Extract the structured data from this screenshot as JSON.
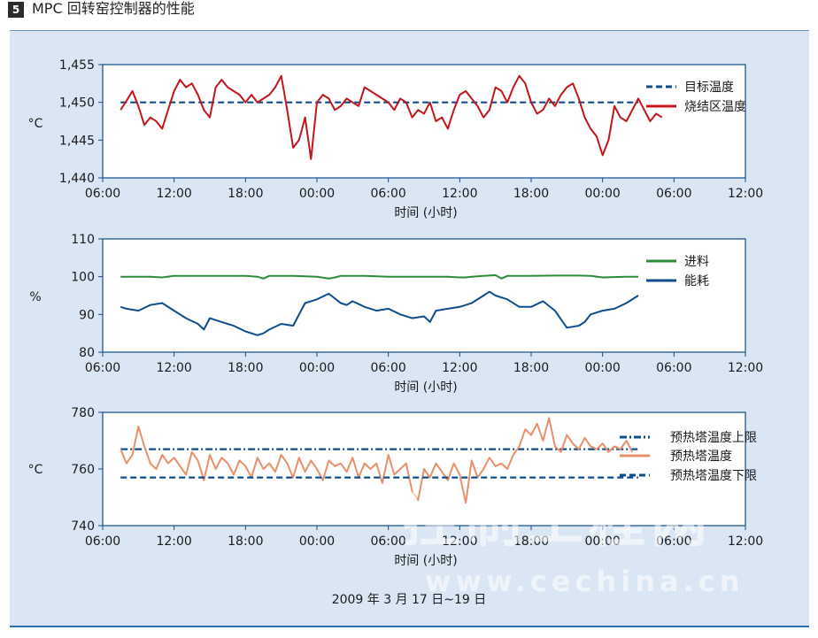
{
  "figure": {
    "number": "5",
    "title": "MPC 回转窑控制器的性能",
    "date_caption": "2009 年 3 月 17 日~19 日",
    "watermark": "控制工程网",
    "watermark_url": "www.cechina.cn"
  },
  "colors": {
    "panel_bg": "#dbe6f4",
    "dark_blue": "#0e4c8c",
    "red": "#c0161c",
    "green": "#2e8b3a",
    "salmon": "#e8906a"
  },
  "chart_data": [
    {
      "type": "line",
      "ylabel": "°C",
      "xlabel": "时间 (小时)",
      "x_ticks": [
        "06:00",
        "12:00",
        "18:00",
        "00:00",
        "06:00",
        "12:00",
        "18:00",
        "00:00",
        "06:00",
        "12:00"
      ],
      "x_unit": "hours",
      "xlim": [
        0,
        54
      ],
      "y_ticks": [
        "1,455",
        "1,450",
        "1,445",
        "1,440"
      ],
      "ylim": [
        1440,
        1455
      ],
      "grid": false,
      "legend_position": "right",
      "series": [
        {
          "name": "目标温度",
          "style": "dashed",
          "color": "#0e4c8c",
          "x": [
            1.5,
            45.0
          ],
          "y": [
            1450,
            1450
          ]
        },
        {
          "name": "烧结区温度",
          "style": "solid",
          "color": "#c0161c",
          "x": [
            1.5,
            2.0,
            2.5,
            3.0,
            3.5,
            4.0,
            4.5,
            5.0,
            5.5,
            6.0,
            6.5,
            7.0,
            7.5,
            8.0,
            8.5,
            9.0,
            9.5,
            10.0,
            10.5,
            11.0,
            11.5,
            12.0,
            12.5,
            13.0,
            13.5,
            14.0,
            14.5,
            15.0,
            15.5,
            16.0,
            16.5,
            17.0,
            17.5,
            18.0,
            18.5,
            19.0,
            19.5,
            20.0,
            20.5,
            21.0,
            21.5,
            22.0,
            22.5,
            23.0,
            23.5,
            24.0,
            24.5,
            25.0,
            25.5,
            26.0,
            26.5,
            27.0,
            27.5,
            28.0,
            28.5,
            29.0,
            29.5,
            30.0,
            30.5,
            31.0,
            31.5,
            32.0,
            32.5,
            33.0,
            33.5,
            34.0,
            34.5,
            35.0,
            35.5,
            36.0,
            36.5,
            37.0,
            37.5,
            38.0,
            38.5,
            39.0,
            39.5,
            40.0,
            40.5,
            41.0,
            41.5,
            42.0,
            42.5,
            43.0,
            43.5,
            44.0,
            44.5,
            45.0,
            45.5,
            46.0,
            46.5,
            47.0
          ],
          "y": [
            1449.0,
            1450.2,
            1451.5,
            1449.5,
            1447.0,
            1448.0,
            1447.5,
            1446.5,
            1449.0,
            1451.5,
            1453.0,
            1452.0,
            1452.5,
            1451.0,
            1449.0,
            1448.0,
            1452.0,
            1453.0,
            1452.0,
            1451.5,
            1451.0,
            1450.0,
            1451.0,
            1450.0,
            1450.5,
            1451.0,
            1452.0,
            1453.5,
            1449.0,
            1444.0,
            1445.0,
            1448.0,
            1442.5,
            1450.0,
            1451.0,
            1450.5,
            1449.0,
            1449.5,
            1450.5,
            1450.0,
            1449.5,
            1452.0,
            1451.5,
            1451.0,
            1450.5,
            1450.0,
            1449.0,
            1450.5,
            1450.0,
            1448.0,
            1449.0,
            1448.5,
            1450.0,
            1447.5,
            1448.0,
            1446.5,
            1449.0,
            1451.0,
            1451.5,
            1450.5,
            1449.5,
            1448.0,
            1449.0,
            1452.0,
            1451.5,
            1450.0,
            1452.0,
            1453.5,
            1452.5,
            1450.0,
            1448.5,
            1449.0,
            1450.5,
            1449.5,
            1451.0,
            1452.0,
            1452.5,
            1450.5,
            1448.0,
            1446.5,
            1445.5,
            1443.0,
            1445.0,
            1449.5,
            1448.0,
            1447.5,
            1449.0,
            1450.5,
            1449.0,
            1447.5,
            1448.5,
            1448.0
          ]
        }
      ]
    },
    {
      "type": "line",
      "ylabel": "%",
      "xlabel": "时间 (小时)",
      "x_ticks": [
        "06:00",
        "12:00",
        "18:00",
        "00:00",
        "06:00",
        "12:00",
        "18:00",
        "00:00",
        "06:00",
        "12:00"
      ],
      "x_unit": "hours",
      "xlim": [
        0,
        54
      ],
      "y_ticks": [
        "110",
        "100",
        "90",
        "80"
      ],
      "ylim": [
        80,
        110
      ],
      "grid": false,
      "legend_position": "right",
      "series": [
        {
          "name": "进料",
          "style": "solid",
          "color": "#2e8b3a",
          "x": [
            1.5,
            4.0,
            5.0,
            6.0,
            8.0,
            10.0,
            12.0,
            13.0,
            13.5,
            14.0,
            16.0,
            18.0,
            19.0,
            19.5,
            20.0,
            22.0,
            24.0,
            27.0,
            29.0,
            30.0,
            30.5,
            31.0,
            32.0,
            33.0,
            33.5,
            34.0,
            36.0,
            38.0,
            40.0,
            41.0,
            42.0,
            44.0,
            45.0
          ],
          "y": [
            100,
            100,
            99.8,
            100.2,
            100.2,
            100.2,
            100.2,
            100.0,
            99.5,
            100.2,
            100.2,
            100.0,
            99.5,
            99.8,
            100.2,
            100.2,
            100.0,
            100.0,
            100.0,
            99.8,
            99.8,
            100.0,
            100.2,
            100.4,
            99.5,
            100.2,
            100.2,
            100.3,
            100.3,
            100.2,
            99.8,
            100.0,
            100.0
          ]
        },
        {
          "name": "能耗",
          "style": "solid",
          "color": "#0e4c8c",
          "x": [
            1.5,
            2.0,
            3.0,
            4.0,
            5.0,
            6.0,
            7.0,
            8.0,
            8.5,
            9.0,
            10.0,
            11.0,
            12.0,
            12.5,
            13.0,
            13.5,
            14.0,
            15.0,
            16.0,
            17.0,
            18.0,
            19.0,
            20.0,
            20.5,
            21.0,
            22.0,
            23.0,
            24.0,
            25.0,
            26.0,
            27.0,
            27.5,
            28.0,
            29.0,
            30.0,
            30.5,
            31.0,
            32.0,
            32.5,
            33.0,
            34.0,
            35.0,
            36.0,
            37.0,
            38.0,
            39.0,
            40.0,
            40.5,
            41.0,
            42.0,
            43.0,
            44.0,
            45.0
          ],
          "y": [
            92,
            91.5,
            91,
            92.5,
            93,
            91,
            89,
            87.5,
            86,
            89,
            88,
            87,
            85.5,
            85,
            84.5,
            85,
            86,
            87.5,
            87,
            93,
            94,
            95.5,
            93,
            92.5,
            93.5,
            92,
            91,
            91.5,
            90,
            89,
            89.5,
            88,
            91,
            91.5,
            92,
            92.5,
            93,
            95,
            96,
            95,
            94,
            92,
            92,
            93.5,
            91,
            86.5,
            87,
            88,
            90,
            91,
            91.5,
            93,
            95
          ]
        }
      ]
    },
    {
      "type": "line",
      "ylabel": "°C",
      "xlabel": "时间 (小时)",
      "x_ticks": [
        "06:00",
        "12:00",
        "18:00",
        "00:00",
        "06:00",
        "12:00",
        "18:00",
        "00:00",
        "06:00",
        "12:00"
      ],
      "x_unit": "hours",
      "xlim": [
        0,
        54
      ],
      "y_ticks": [
        "780",
        "760",
        "740"
      ],
      "ylim": [
        740,
        780
      ],
      "grid": false,
      "legend_position": "right",
      "series": [
        {
          "name": "预热塔温度上限",
          "style": "dashdot",
          "color": "#0e4c8c",
          "x": [
            1.5,
            45.0
          ],
          "y": [
            767,
            767
          ]
        },
        {
          "name": "预热塔温度",
          "style": "solid",
          "color": "#e8906a",
          "x": [
            1.5,
            2.0,
            2.5,
            3.0,
            3.5,
            4.0,
            4.5,
            5.0,
            5.5,
            6.0,
            6.5,
            7.0,
            7.5,
            8.0,
            8.5,
            9.0,
            9.5,
            10.0,
            10.5,
            11.0,
            11.5,
            12.0,
            12.5,
            13.0,
            13.5,
            14.0,
            14.5,
            15.0,
            15.5,
            16.0,
            16.5,
            17.0,
            17.5,
            18.0,
            18.5,
            19.0,
            19.5,
            20.0,
            20.5,
            21.0,
            21.5,
            22.0,
            22.5,
            23.0,
            23.5,
            24.0,
            24.5,
            25.0,
            25.5,
            26.0,
            26.5,
            27.0,
            27.5,
            28.0,
            28.5,
            29.0,
            29.5,
            30.0,
            30.5,
            31.0,
            31.5,
            32.0,
            32.5,
            33.0,
            33.5,
            34.0,
            34.5,
            35.0,
            35.5,
            36.0,
            36.5,
            37.0,
            37.5,
            38.0,
            38.5,
            39.0,
            39.5,
            40.0,
            40.5,
            41.0,
            41.5,
            42.0,
            42.5,
            43.0,
            43.5,
            44.0,
            44.5
          ],
          "y": [
            767,
            762,
            765,
            775,
            768,
            762,
            760,
            765,
            762,
            764,
            761,
            758,
            766,
            763,
            756,
            765,
            760,
            764,
            762,
            758,
            763,
            761,
            757,
            764,
            760,
            762,
            759,
            765,
            762,
            757,
            764,
            759,
            763,
            760,
            756,
            763,
            761,
            762,
            759,
            764,
            757,
            762,
            760,
            762,
            755,
            765,
            758,
            760,
            762,
            752,
            749,
            760,
            757,
            762,
            759,
            756,
            762,
            758,
            748,
            763,
            757,
            760,
            764,
            761,
            762,
            760,
            765,
            768,
            774,
            772,
            776,
            770,
            778,
            768,
            766,
            772,
            769,
            767,
            771,
            768,
            767,
            769,
            766,
            768,
            767,
            770,
            766
          ]
        },
        {
          "name": "预热塔温度下限",
          "style": "dashed",
          "color": "#0e4c8c",
          "x": [
            1.5,
            45.0
          ],
          "y": [
            757,
            757
          ]
        }
      ]
    }
  ]
}
